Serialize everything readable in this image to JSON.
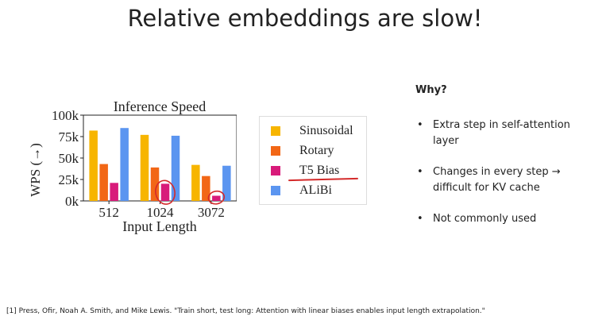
{
  "slide": {
    "title": "Relative embeddings are slow!"
  },
  "chart_data": {
    "type": "bar",
    "title": "Inference Speed",
    "xlabel": "Input Length",
    "ylabel": "WPS (→)",
    "categories": [
      "512",
      "1024",
      "3072"
    ],
    "ylim": [
      0,
      100000
    ],
    "yticks": [
      {
        "value": 0,
        "label": "0k"
      },
      {
        "value": 25000,
        "label": "25k"
      },
      {
        "value": 50000,
        "label": "50k"
      },
      {
        "value": 75000,
        "label": "75k"
      },
      {
        "value": 100000,
        "label": "100k"
      }
    ],
    "series": [
      {
        "name": "Sinusoidal",
        "color": "#f7b500",
        "values": [
          82000,
          77000,
          42000
        ]
      },
      {
        "name": "Rotary",
        "color": "#f26716",
        "values": [
          43000,
          39000,
          29000
        ]
      },
      {
        "name": "T5 Bias",
        "color": "#d81b7a",
        "values": [
          21000,
          20000,
          6000
        ]
      },
      {
        "name": "ALiBi",
        "color": "#5b95f0",
        "values": [
          85000,
          76000,
          41000
        ]
      }
    ],
    "legend_position": "right",
    "grid": false,
    "annotations": [
      {
        "type": "hand-drawn-circle",
        "series": "T5 Bias",
        "category": "1024",
        "color": "#d42a2a"
      },
      {
        "type": "hand-drawn-circle",
        "series": "T5 Bias",
        "category": "3072",
        "color": "#d42a2a"
      },
      {
        "type": "hand-drawn-underline",
        "target": "legend:T5 Bias",
        "color": "#d42a2a"
      }
    ]
  },
  "why": {
    "heading": "Why?",
    "bullet_symbol": "•",
    "bullets": [
      "Extra step in self-attention layer",
      "Changes in every step → difficult for KV cache",
      "Not commonly used"
    ]
  },
  "footnote": "[1] Press, Ofir, Noah A. Smith, and Mike Lewis. \"Train short, test long: Attention with linear biases enables input length extrapolation.\""
}
